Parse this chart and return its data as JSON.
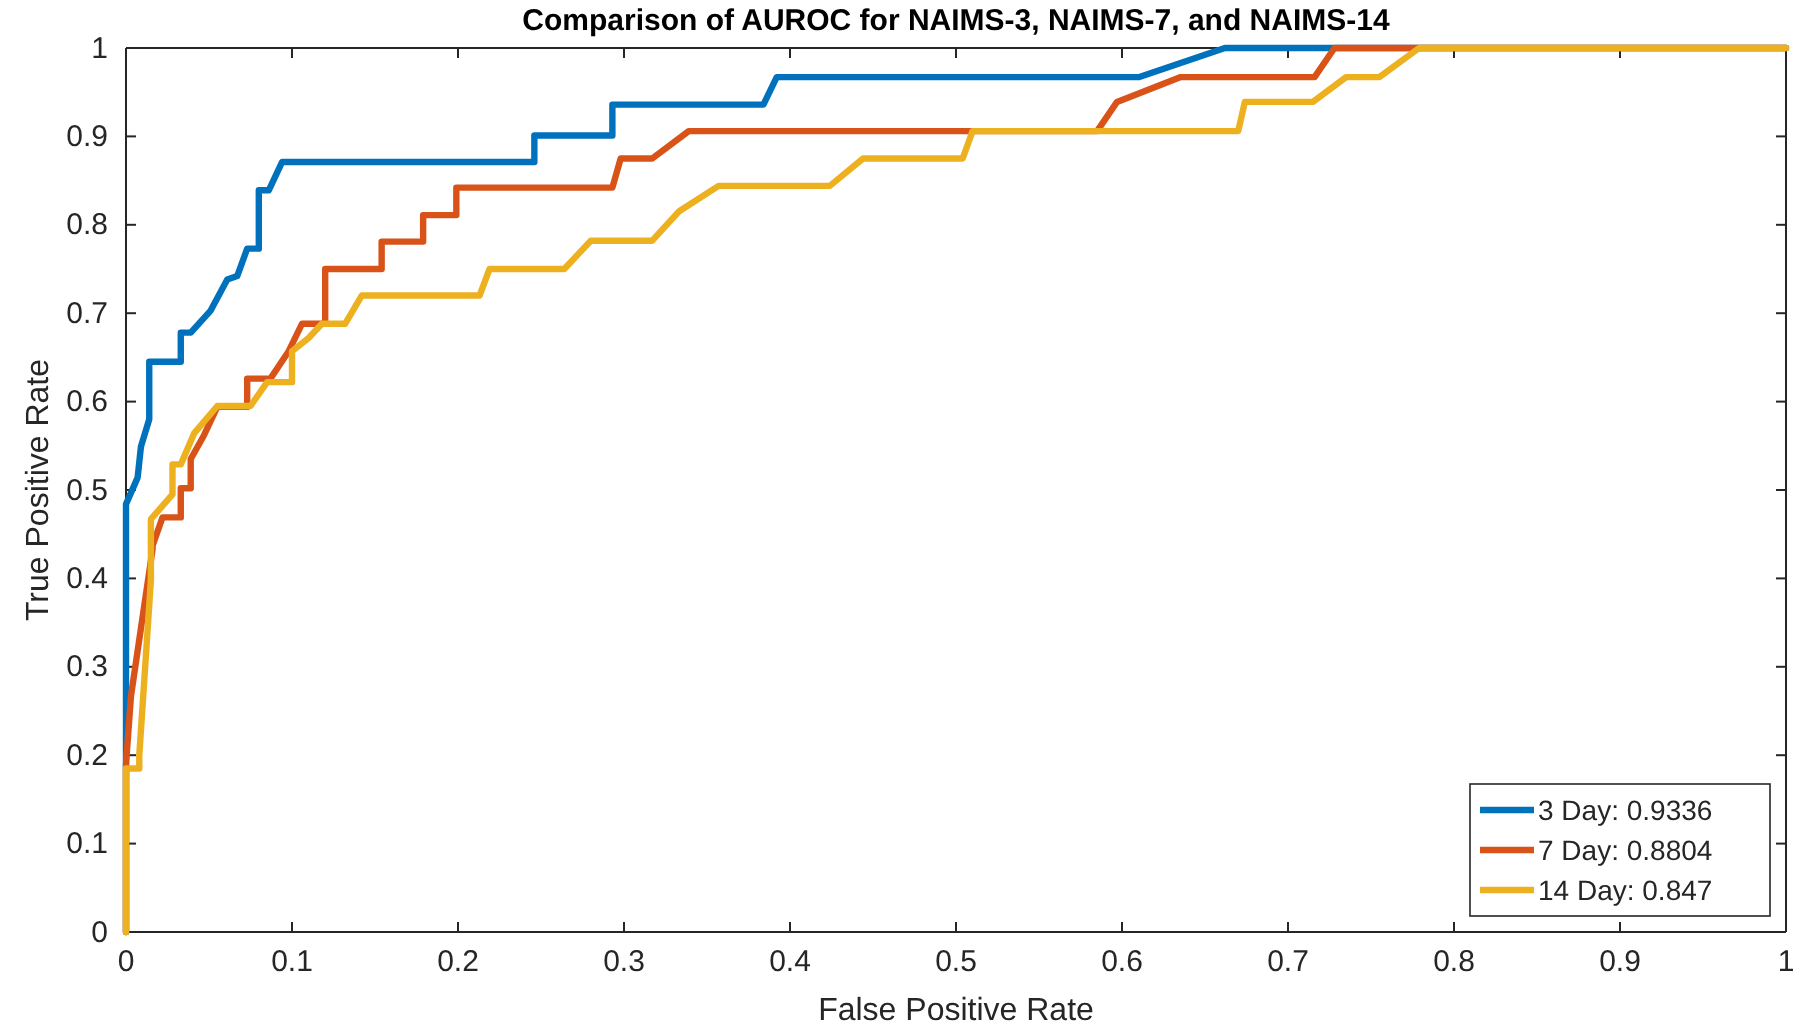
{
  "chart_data": {
    "type": "line",
    "title": "Comparison of AUROC for NAIMS-3, NAIMS-7, and NAIMS-14",
    "xlabel": "False Positive Rate",
    "ylabel": "True Positive Rate",
    "xlim": [
      0,
      1
    ],
    "ylim": [
      0,
      1
    ],
    "xticks": [
      0,
      0.1,
      0.2,
      0.3,
      0.4,
      0.5,
      0.6,
      0.7,
      0.8,
      0.9,
      1
    ],
    "yticks": [
      0,
      0.1,
      0.2,
      0.3,
      0.4,
      0.5,
      0.6,
      0.7,
      0.8,
      0.9,
      1
    ],
    "grid": false,
    "legend": "bottom right",
    "line_style": "solid",
    "marker": "none",
    "series": [
      {
        "name": "3 Day: 0.9336",
        "color": "#0072bd",
        "x": [
          0,
          0,
          0.007,
          0.009,
          0.014,
          0.014,
          0.033,
          0.033,
          0.039,
          0.051,
          0.061,
          0.067,
          0.073,
          0.08,
          0.08,
          0.086,
          0.094,
          0.246,
          0.246,
          0.293,
          0.293,
          0.384,
          0.392,
          0.61,
          0.662,
          1
        ],
        "values": [
          0,
          0.484,
          0.514,
          0.549,
          0.58,
          0.645,
          0.645,
          0.678,
          0.678,
          0.703,
          0.738,
          0.742,
          0.773,
          0.773,
          0.839,
          0.839,
          0.871,
          0.871,
          0.901,
          0.901,
          0.936,
          0.936,
          0.967,
          0.967,
          1,
          1
        ]
      },
      {
        "name": "7 Day: 0.8804",
        "color": "#d95319",
        "x": [
          0,
          0,
          0.003,
          0.016,
          0.016,
          0.022,
          0.033,
          0.033,
          0.039,
          0.039,
          0.047,
          0.055,
          0.073,
          0.073,
          0.087,
          0.098,
          0.106,
          0.12,
          0.12,
          0.154,
          0.154,
          0.179,
          0.179,
          0.199,
          0.199,
          0.293,
          0.298,
          0.317,
          0.339,
          0.585,
          0.597,
          0.635,
          0.716,
          0.728,
          1
        ],
        "values": [
          0,
          0.19,
          0.267,
          0.433,
          0.437,
          0.469,
          0.469,
          0.502,
          0.502,
          0.535,
          0.562,
          0.594,
          0.594,
          0.626,
          0.626,
          0.657,
          0.688,
          0.688,
          0.75,
          0.75,
          0.781,
          0.781,
          0.811,
          0.811,
          0.842,
          0.842,
          0.875,
          0.875,
          0.906,
          0.906,
          0.939,
          0.967,
          0.967,
          1,
          1
        ]
      },
      {
        "name": "14 Day: 0.847",
        "color": "#edb120",
        "x": [
          0,
          0,
          0.008,
          0.008,
          0.015,
          0.015,
          0.028,
          0.028,
          0.033,
          0.041,
          0.055,
          0.075,
          0.085,
          0.1,
          0.1,
          0.11,
          0.118,
          0.132,
          0.142,
          0.213,
          0.219,
          0.264,
          0.28,
          0.317,
          0.333,
          0.357,
          0.424,
          0.444,
          0.504,
          0.51,
          0.67,
          0.674,
          0.715,
          0.735,
          0.755,
          0.779,
          1
        ],
        "values": [
          0,
          0.185,
          0.185,
          0.2,
          0.398,
          0.467,
          0.495,
          0.529,
          0.529,
          0.564,
          0.595,
          0.595,
          0.622,
          0.622,
          0.657,
          0.672,
          0.688,
          0.688,
          0.72,
          0.72,
          0.75,
          0.75,
          0.782,
          0.782,
          0.815,
          0.844,
          0.844,
          0.875,
          0.875,
          0.906,
          0.906,
          0.939,
          0.939,
          0.967,
          0.967,
          1,
          1
        ]
      }
    ]
  }
}
